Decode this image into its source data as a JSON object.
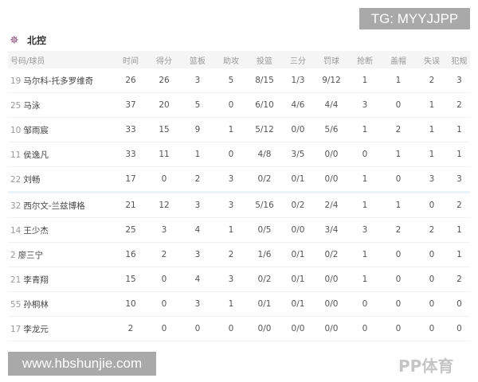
{
  "watermark_top": "TG: MYYJJPP",
  "watermark_bottom": "www.hbshunjie.com",
  "watermark_logo": "PP体育",
  "team": {
    "name": "北控",
    "icon": "team-logo-icon"
  },
  "columns": [
    "号码/球员",
    "时间",
    "得分",
    "篮板",
    "助攻",
    "投篮",
    "三分",
    "罚球",
    "抢断",
    "盖帽",
    "失误",
    "犯规"
  ],
  "starters": [
    [
      "19",
      "马尔科-托多罗维奇",
      "26",
      "26",
      "3",
      "5",
      "8/15",
      "1/3",
      "9/12",
      "1",
      "1",
      "2",
      "3"
    ],
    [
      "25",
      "马泳",
      "37",
      "20",
      "5",
      "0",
      "6/10",
      "4/6",
      "4/4",
      "3",
      "0",
      "1",
      "2"
    ],
    [
      "10",
      "邹雨宸",
      "33",
      "15",
      "9",
      "1",
      "5/12",
      "0/0",
      "5/6",
      "1",
      "2",
      "1",
      "1"
    ],
    [
      "11",
      "侯逸凡",
      "33",
      "11",
      "1",
      "0",
      "4/8",
      "3/5",
      "0/0",
      "0",
      "1",
      "1",
      "1"
    ],
    [
      "22",
      "刘畅",
      "17",
      "0",
      "2",
      "3",
      "0/2",
      "0/1",
      "0/0",
      "1",
      "0",
      "3",
      "3"
    ]
  ],
  "bench": [
    [
      "32",
      "西尔文-兰兹博格",
      "21",
      "12",
      "3",
      "3",
      "5/16",
      "0/2",
      "2/4",
      "1",
      "1",
      "0",
      "2"
    ],
    [
      "14",
      "王少杰",
      "25",
      "3",
      "4",
      "1",
      "0/5",
      "0/0",
      "3/4",
      "3",
      "2",
      "2",
      "1"
    ],
    [
      "2",
      "廖三宁",
      "16",
      "2",
      "3",
      "2",
      "1/6",
      "0/1",
      "0/2",
      "1",
      "0",
      "0",
      "1"
    ],
    [
      "21",
      "李青翔",
      "15",
      "0",
      "4",
      "3",
      "0/2",
      "0/1",
      "0/0",
      "1",
      "0",
      "0",
      "2"
    ],
    [
      "55",
      "孙桐林",
      "10",
      "0",
      "3",
      "1",
      "0/1",
      "0/1",
      "0/0",
      "0",
      "0",
      "0",
      "0"
    ],
    [
      "17",
      "李龙元",
      "2",
      "0",
      "0",
      "0",
      "0/0",
      "0/0",
      "0/0",
      "0",
      "0",
      "0",
      "0"
    ]
  ]
}
